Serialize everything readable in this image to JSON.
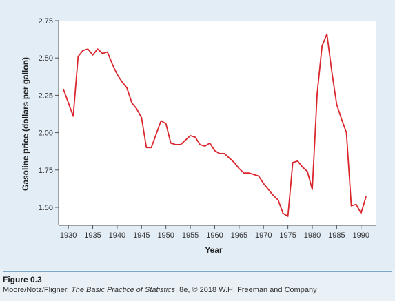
{
  "chart_data": {
    "type": "line",
    "xlabel": "Year",
    "ylabel": "Gasoline price (dollars per gallon)",
    "xlim": [
      1928,
      1993
    ],
    "ylim": [
      1.38,
      2.75
    ],
    "x_ticks": [
      1930,
      1935,
      1940,
      1945,
      1950,
      1955,
      1960,
      1965,
      1970,
      1975,
      1980,
      1985,
      1990
    ],
    "x_tick_labels": [
      "1930",
      "1935",
      "1940",
      "1945",
      "1950",
      "1955",
      "1960",
      "1965",
      "1970",
      "1975",
      "1980",
      "1985",
      "1990"
    ],
    "y_ticks": [
      1.5,
      1.75,
      2.0,
      2.25,
      2.5,
      2.75
    ],
    "y_tick_labels": [
      "1.50",
      "1.75",
      "2.00",
      "2.25",
      "2.50",
      "2.75"
    ],
    "grid": false,
    "series": [
      {
        "color": "#d9262c",
        "points": [
          [
            1929,
            2.29
          ],
          [
            1931,
            2.11
          ],
          [
            1932,
            2.51
          ],
          [
            1933,
            2.55
          ],
          [
            1934,
            2.56
          ],
          [
            1935,
            2.52
          ],
          [
            1936,
            2.56
          ],
          [
            1937,
            2.53
          ],
          [
            1938,
            2.54
          ],
          [
            1939,
            2.46
          ],
          [
            1940,
            2.39
          ],
          [
            1941,
            2.34
          ],
          [
            1942,
            2.3
          ],
          [
            1943,
            2.2
          ],
          [
            1944,
            2.16
          ],
          [
            1945,
            2.1
          ],
          [
            1946,
            1.9
          ],
          [
            1947,
            1.9
          ],
          [
            1948,
            1.99
          ],
          [
            1949,
            2.08
          ],
          [
            1950,
            2.06
          ],
          [
            1951,
            1.93
          ],
          [
            1952,
            1.92
          ],
          [
            1953,
            1.92
          ],
          [
            1954,
            1.95
          ],
          [
            1955,
            1.98
          ],
          [
            1956,
            1.97
          ],
          [
            1957,
            1.92
          ],
          [
            1958,
            1.91
          ],
          [
            1959,
            1.93
          ],
          [
            1960,
            1.88
          ],
          [
            1961,
            1.86
          ],
          [
            1962,
            1.86
          ],
          [
            1963,
            1.83
          ],
          [
            1964,
            1.8
          ],
          [
            1965,
            1.76
          ],
          [
            1966,
            1.73
          ],
          [
            1967,
            1.73
          ],
          [
            1968,
            1.72
          ],
          [
            1969,
            1.71
          ],
          [
            1970,
            1.66
          ],
          [
            1971,
            1.62
          ],
          [
            1972,
            1.58
          ],
          [
            1973,
            1.55
          ],
          [
            1974,
            1.46
          ],
          [
            1975,
            1.44
          ],
          [
            1976,
            1.8
          ],
          [
            1977,
            1.81
          ],
          [
            1978,
            1.77
          ],
          [
            1979,
            1.74
          ],
          [
            1980,
            1.62
          ],
          [
            1981,
            2.26
          ],
          [
            1982,
            2.58
          ],
          [
            1983,
            2.66
          ],
          [
            1984,
            2.41
          ],
          [
            1985,
            2.19
          ],
          [
            1986,
            2.09
          ],
          [
            1987,
            2.0
          ],
          [
            1988,
            1.51
          ],
          [
            1989,
            1.52
          ],
          [
            1990,
            1.46
          ],
          [
            1991,
            1.57
          ]
        ]
      }
    ]
  },
  "caption": {
    "figure_label": "Figure 0.3",
    "credit_before": "Moore/Notz/Fligner, ",
    "credit_title": "The Basic Practice of Statistics",
    "credit_after": ", 8e, © 2018 W.H. Freeman and Company"
  }
}
